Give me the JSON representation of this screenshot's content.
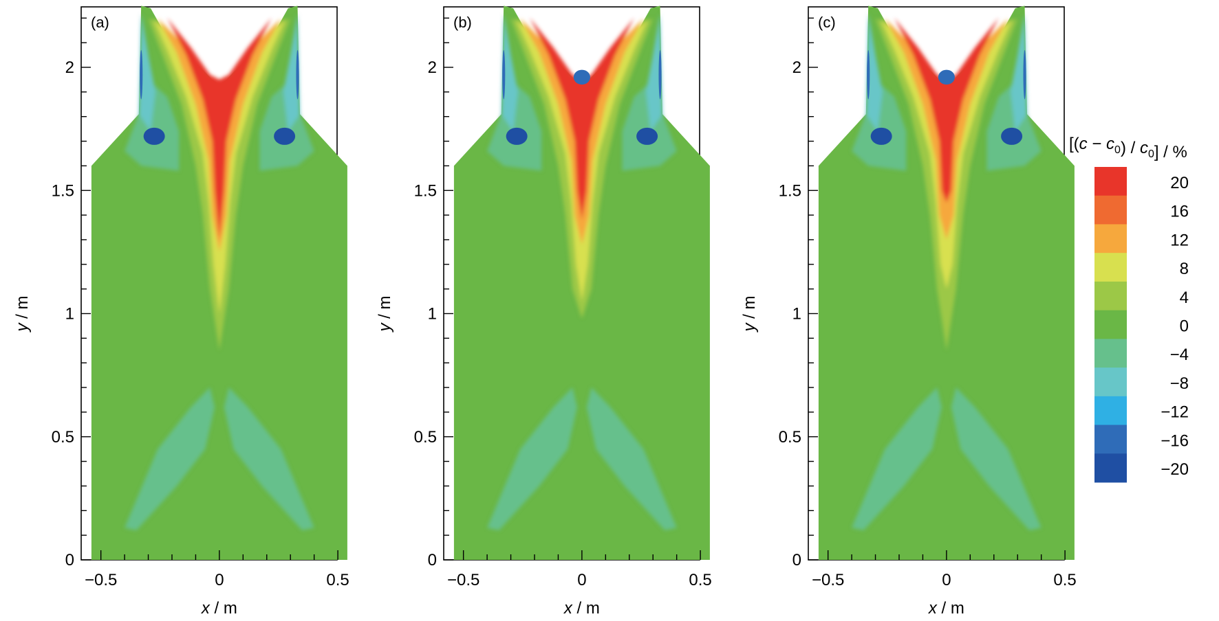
{
  "chart_data": {
    "type": "heatmap",
    "description_units": {
      "x": "x / m",
      "y": "y / m",
      "colorbar_title": "[(c − c0) / c0] / %"
    },
    "panels": [
      {
        "tag": "(a)"
      },
      {
        "tag": "(b)"
      },
      {
        "tag": "(c)"
      }
    ],
    "xlim": [
      -0.5,
      0.5
    ],
    "ylim": [
      0,
      2.25
    ],
    "x_ticks": [
      -0.5,
      0,
      0.5
    ],
    "x_tick_labels": [
      "−0.5",
      "0",
      "0.5"
    ],
    "y_ticks": [
      0,
      0.5,
      1,
      1.5,
      2
    ],
    "y_tick_labels": [
      "0",
      "0.5",
      "1",
      "1.5",
      "2"
    ],
    "xlabel": {
      "var": "x",
      "unit": "/ m"
    },
    "ylabel": {
      "var": "y",
      "unit": "/ m"
    },
    "colorbar": {
      "title_parts": {
        "open": "[(",
        "c": "c",
        "minus": " − ",
        "c0": "c",
        "sub": "0",
        "div": ") / ",
        "c0b": "c",
        "subb": "0",
        "close": "] / %"
      },
      "levels": [
        20,
        16,
        12,
        8,
        4,
        0,
        -4,
        -8,
        -12,
        -16,
        -20
      ],
      "level_labels": [
        "20",
        "16",
        "12",
        "8",
        "4",
        "0",
        "−4",
        "−8",
        "−12",
        "−16",
        "−20"
      ],
      "colors": [
        "#e8352a",
        "#ef6a31",
        "#f6a83d",
        "#d8e04f",
        "#9cc847",
        "#6ab746",
        "#66c08c",
        "#67c6c8",
        "#2fb0e4",
        "#2f6cb8",
        "#1f4fa3"
      ]
    },
    "background_level": 0
  }
}
